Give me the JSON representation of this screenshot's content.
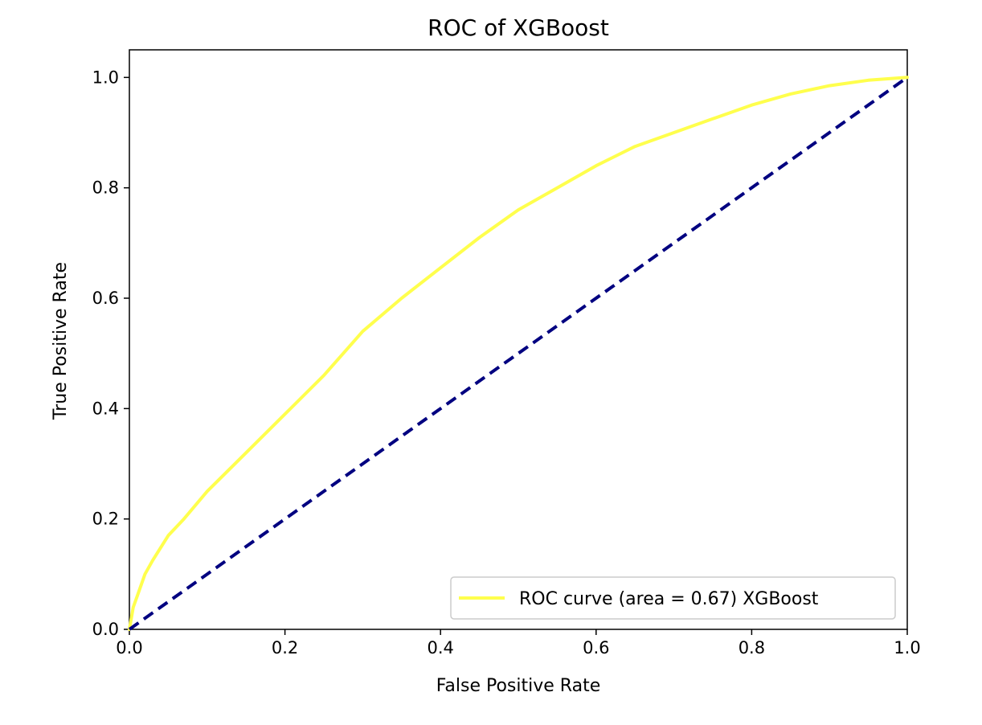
{
  "chart_data": {
    "type": "line",
    "title": "ROC of XGBoost",
    "xlabel": "False Positive Rate",
    "ylabel": "True Positive Rate",
    "xlim": [
      0.0,
      1.0
    ],
    "ylim": [
      0.0,
      1.05
    ],
    "x_ticks": [
      "0.0",
      "0.2",
      "0.4",
      "0.6",
      "0.8",
      "1.0"
    ],
    "y_ticks": [
      "0.0",
      "0.2",
      "0.4",
      "0.6",
      "0.8",
      "1.0"
    ],
    "grid": false,
    "legend": {
      "position": "lower right",
      "entries": [
        "ROC curve (area = 0.67) XGBoost"
      ]
    },
    "series": [
      {
        "name": "ROC curve (area = 0.67) XGBoost",
        "color": "#ffff4d",
        "style": "solid",
        "x": [
          0.0,
          0.005,
          0.01,
          0.02,
          0.03,
          0.05,
          0.07,
          0.1,
          0.15,
          0.2,
          0.25,
          0.3,
          0.35,
          0.4,
          0.45,
          0.5,
          0.55,
          0.6,
          0.65,
          0.7,
          0.75,
          0.8,
          0.85,
          0.9,
          0.95,
          1.0
        ],
        "y": [
          0.0,
          0.04,
          0.06,
          0.1,
          0.125,
          0.17,
          0.2,
          0.25,
          0.32,
          0.39,
          0.46,
          0.54,
          0.6,
          0.655,
          0.71,
          0.76,
          0.8,
          0.84,
          0.875,
          0.9,
          0.925,
          0.95,
          0.97,
          0.985,
          0.995,
          1.0
        ]
      },
      {
        "color": "#000080",
        "style": "dashed",
        "x": [
          0.0,
          1.0
        ],
        "y": [
          0.0,
          1.0
        ]
      }
    ]
  }
}
